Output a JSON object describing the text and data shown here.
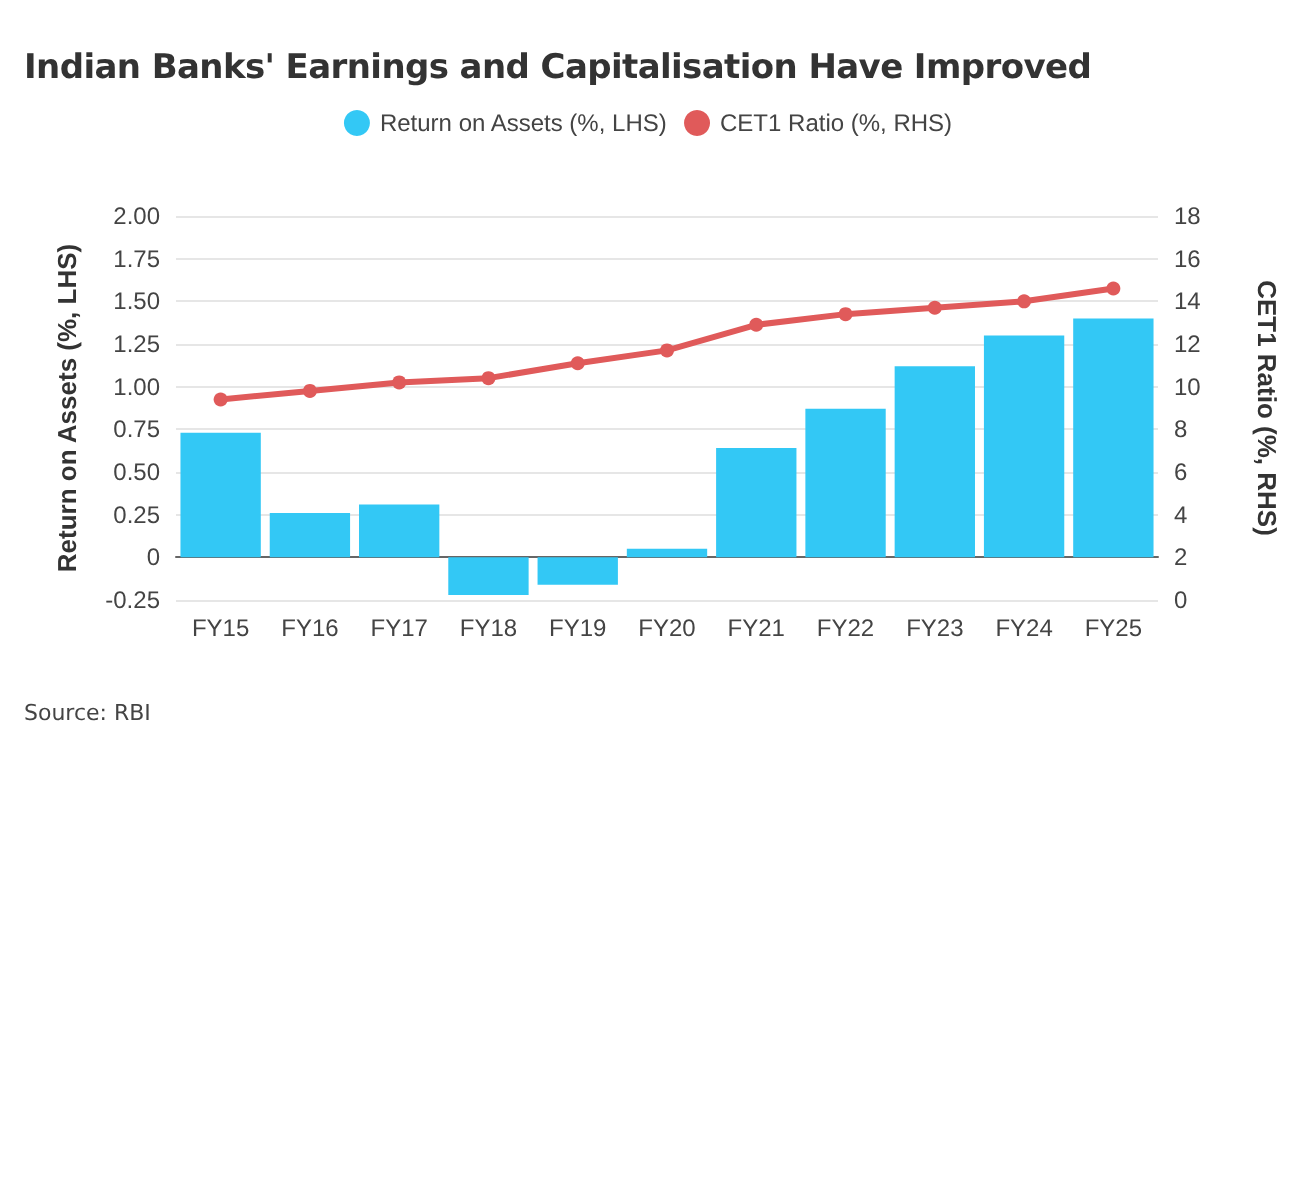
{
  "chart_data": {
    "type": "bar",
    "title": "Indian Banks' Earnings and Capitalisation Have Improved",
    "categories": [
      "FY15",
      "FY16",
      "FY17",
      "FY18",
      "FY19",
      "FY20",
      "FY21",
      "FY22",
      "FY23",
      "FY24",
      "FY25"
    ],
    "series": [
      {
        "name": "Return on Assets (%, LHS)",
        "color": "#33c8f5",
        "values": [
          0.73,
          0.26,
          0.31,
          -0.22,
          -0.16,
          0.05,
          0.64,
          0.87,
          1.12,
          1.3,
          1.4
        ]
      },
      {
        "name": "CET1 Ratio (%, RHS)",
        "type": "line",
        "axis": "y2",
        "color": "#e05a5a",
        "values": [
          9.4,
          9.8,
          10.2,
          10.4,
          11.1,
          11.7,
          12.9,
          13.4,
          13.7,
          14.0,
          14.6
        ]
      }
    ],
    "ylabel": "Return on Assets (%, LHS)",
    "y2label": "CET1 Ratio (%, RHS)",
    "ylim": [
      -0.25,
      2.0
    ],
    "yticks": [
      {
        "value": -0.25,
        "label": "-0.25"
      },
      {
        "value": 0,
        "label": "0"
      },
      {
        "value": 0.25,
        "label": "0.25"
      },
      {
        "value": 0.5,
        "label": "0.50"
      },
      {
        "value": 0.75,
        "label": "0.75"
      },
      {
        "value": 1.0,
        "label": "1.00"
      },
      {
        "value": 1.25,
        "label": "1.25"
      },
      {
        "value": 1.5,
        "label": "1.50"
      },
      {
        "value": 1.75,
        "label": "1.75"
      },
      {
        "value": 2.0,
        "label": "2.00"
      }
    ],
    "y2lim": [
      0,
      18
    ],
    "y2ticks": [
      0,
      2,
      4,
      6,
      8,
      10,
      12,
      14,
      16,
      18
    ],
    "grid": "y",
    "legend": "top",
    "marker": "circle",
    "line_style": "solid",
    "annotations": [
      "Source: RBI"
    ]
  }
}
